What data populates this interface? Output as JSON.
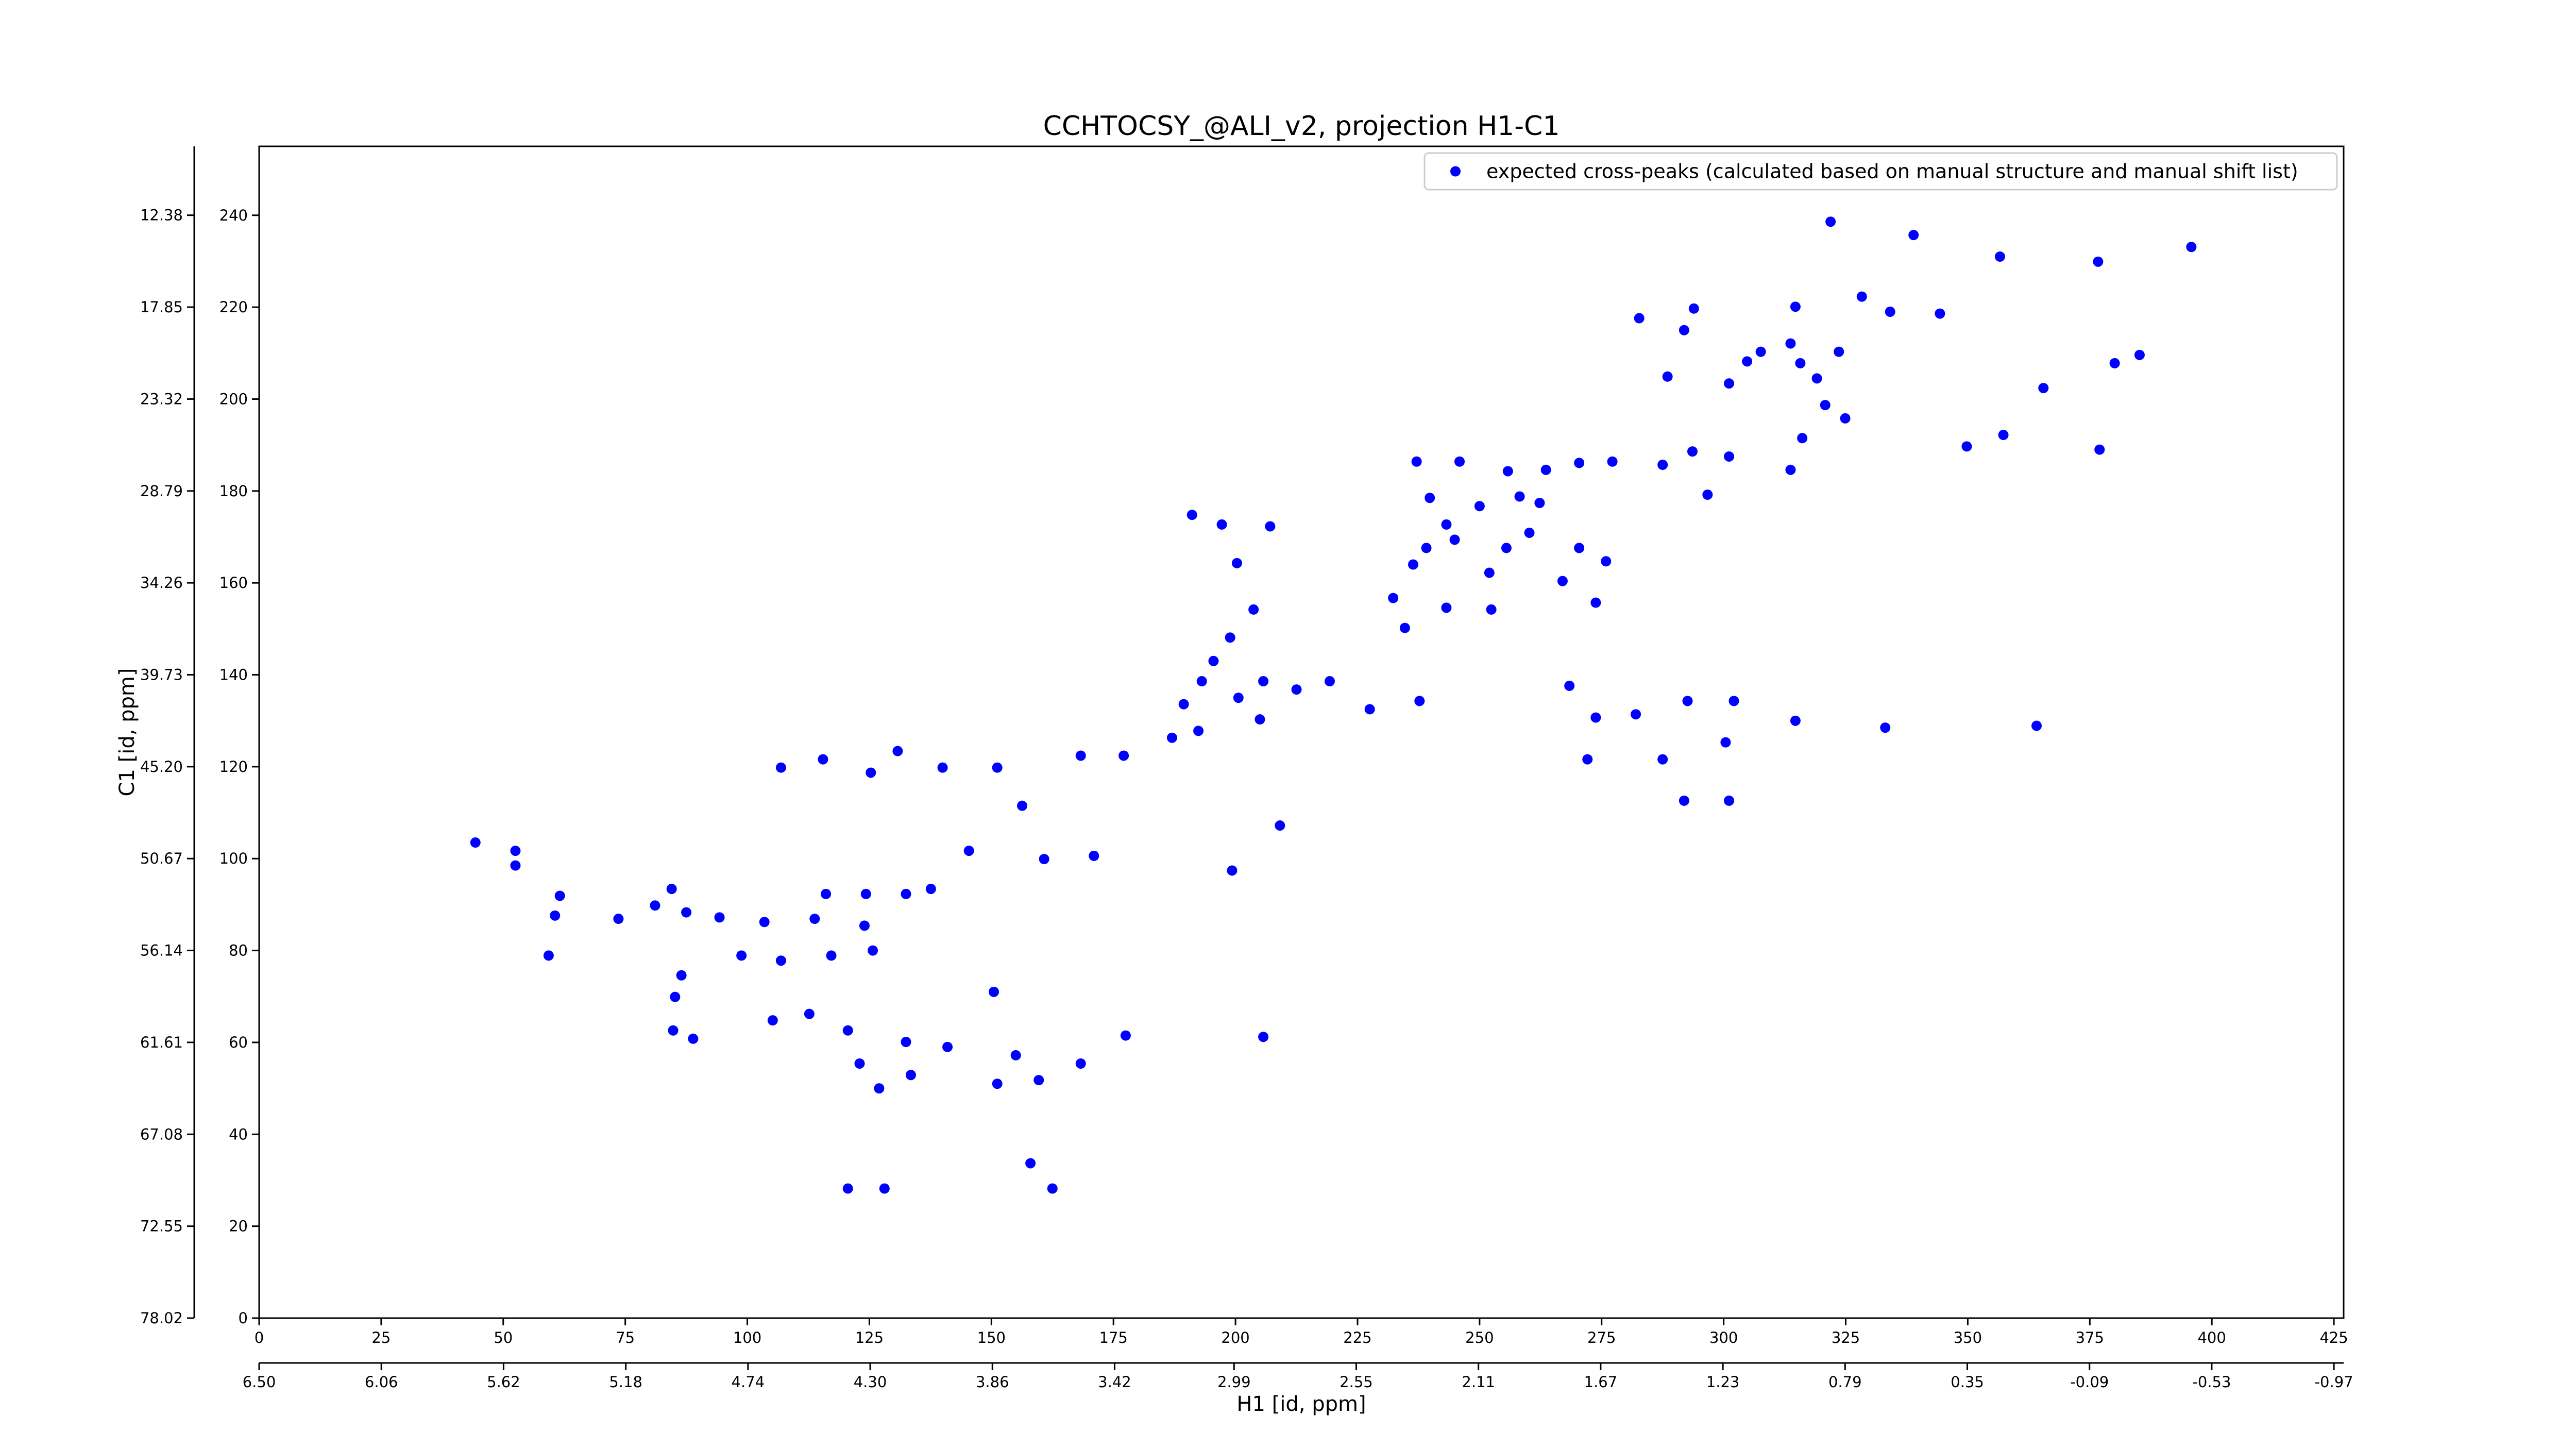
{
  "chart_data": {
    "type": "scatter",
    "title": "CCHTOCSY_@ALI_v2, projection H1-C1",
    "xlabel": "H1 [id, ppm]",
    "ylabel": "C1 [id, ppm]",
    "xlim": [
      0,
      427
    ],
    "ylim": [
      0,
      255
    ],
    "xticks": [
      0,
      25,
      50,
      75,
      100,
      125,
      150,
      175,
      200,
      225,
      250,
      275,
      300,
      325,
      350,
      375,
      400,
      425
    ],
    "yticks": [
      0,
      20,
      40,
      60,
      80,
      100,
      120,
      140,
      160,
      180,
      200,
      220,
      240
    ],
    "x2lim": [
      6.5,
      -1.005
    ],
    "x2ticks": [
      {
        "value": 6.5,
        "label": "6.50"
      },
      6.06,
      5.62,
      5.18,
      4.74,
      {
        "value": 4.3,
        "label": "4.30"
      },
      3.86,
      3.42,
      2.99,
      2.55,
      2.11,
      1.67,
      1.23,
      0.79,
      0.35,
      -0.09,
      -0.53,
      -0.97
    ],
    "y2lim": [
      78.02,
      8.28
    ],
    "y2ticks": [
      78.02,
      72.55,
      67.08,
      61.61,
      56.14,
      50.67,
      {
        "value": 45.2,
        "label": "45.20"
      },
      39.73,
      34.26,
      28.79,
      23.32,
      17.85,
      12.38
    ],
    "legend": "upper right",
    "series": [
      {
        "name": "expected cross-peaks (calculated based on manual structure and manual shift list)",
        "color": "#0000ff",
        "x": [
          321.9,
          338.9,
          356.6,
          376.7,
          395.8,
          380.1,
          385.2,
          365.5,
          377.0,
          357.3,
          349.8,
          334.1,
          344.3,
          328.3,
          314.7,
          307.6,
          313.7,
          315.7,
          319.1,
          323.6,
          320.8,
          324.9,
          316.1,
          313.7,
          304.8,
          301.1,
          293.9,
          282.7,
          291.9,
          288.5,
          293.6,
          287.5,
          277.2,
          270.4,
          263.6,
          255.8,
          245.9,
          237.1,
          301.1,
          296.7,
          239.8,
          250.0,
          258.2,
          262.3,
          243.2,
          244.9,
          239.1,
          255.5,
          260.2,
          270.4,
          275.9,
          267.0,
          273.8,
          252.0,
          252.4,
          243.2,
          236.4,
          232.3,
          234.7,
          191.1,
          197.2,
          207.1,
          200.3,
          203.7,
          198.9,
          195.5,
          193.1,
          200.6,
          205.7,
          212.5,
          219.3,
          227.5,
          237.7,
          205.0,
          189.4,
          187.0,
          192.4,
          177.1,
          268.4,
          273.8,
          282.0,
          292.6,
          302.1,
          272.1,
          287.5,
          300.4,
          301.1,
          291.9,
          314.7,
          333.1,
          364.1,
          168.3,
          151.2,
          140.0,
          130.8,
          125.3,
          115.5,
          106.9,
          44.3,
          52.5,
          52.5,
          61.6,
          60.6,
          59.3,
          73.6,
          81.1,
          84.5,
          87.5,
          94.3,
          103.5,
          113.8,
          116.1,
          124.3,
          132.5,
          137.6,
          124.0,
          125.7,
          117.2,
          106.9,
          98.8,
          86.5,
          85.2,
          84.8,
          88.9,
          105.2,
          112.7,
          120.6,
          132.5,
          141.0,
          123.0,
          127.0,
          133.5,
          151.2,
          159.7,
          168.3,
          155.0,
          145.4,
          160.8,
          171.0,
          156.3,
          199.3,
          209.1,
          177.5,
          158.0,
          162.5,
          120.6,
          128.1,
          205.7,
          150.5
        ],
        "values": [
          238.6,
          235.7,
          231.0,
          229.9,
          233.1,
          207.8,
          209.6,
          202.4,
          189.0,
          192.2,
          189.7,
          219.0,
          218.6,
          222.3,
          220.1,
          210.3,
          212.1,
          207.8,
          204.5,
          210.3,
          198.7,
          195.8,
          191.5,
          184.6,
          208.2,
          203.4,
          219.7,
          217.6,
          215.0,
          204.9,
          188.6,
          185.7,
          186.4,
          186.1,
          184.6,
          184.3,
          186.4,
          186.4,
          187.5,
          179.2,
          178.5,
          176.7,
          178.8,
          177.4,
          172.7,
          169.4,
          167.6,
          167.6,
          170.9,
          167.6,
          164.7,
          160.4,
          155.7,
          162.2,
          154.2,
          154.6,
          164.0,
          156.7,
          150.2,
          174.8,
          172.7,
          172.3,
          164.3,
          154.2,
          148.1,
          143.0,
          138.6,
          135.0,
          138.6,
          136.8,
          138.6,
          132.5,
          134.3,
          130.3,
          133.6,
          126.3,
          127.8,
          122.4,
          137.6,
          130.7,
          131.4,
          134.3,
          134.3,
          121.6,
          121.6,
          125.3,
          112.6,
          112.6,
          130.0,
          128.5,
          128.9,
          122.4,
          119.8,
          119.8,
          123.4,
          118.7,
          121.6,
          119.8,
          103.5,
          101.7,
          98.5,
          91.9,
          87.6,
          78.9,
          86.9,
          89.8,
          93.4,
          88.3,
          87.2,
          86.2,
          86.9,
          92.3,
          92.3,
          92.3,
          93.4,
          85.4,
          80.0,
          78.9,
          77.8,
          78.9,
          74.6,
          69.9,
          62.6,
          60.8,
          64.8,
          66.2,
          62.6,
          60.1,
          59.0,
          55.4,
          50.0,
          52.9,
          51.0,
          51.8,
          55.4,
          57.2,
          101.7,
          99.9,
          100.6,
          111.5,
          97.4,
          107.2,
          61.5,
          33.7,
          28.2,
          28.2,
          28.2,
          61.2,
          71.0
        ]
      }
    ]
  }
}
